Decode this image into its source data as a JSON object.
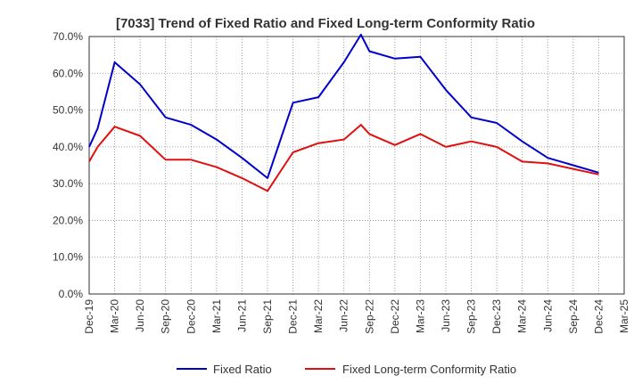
{
  "chart_data": {
    "type": "line",
    "title": "[7033]  Trend of Fixed Ratio and Fixed Long-term Conformity Ratio",
    "xlabel": "",
    "ylabel": "",
    "ylim": [
      0,
      70
    ],
    "y_ticks": [
      "0.0%",
      "10.0%",
      "20.0%",
      "30.0%",
      "40.0%",
      "50.0%",
      "60.0%",
      "70.0%"
    ],
    "x_ticks": [
      "Dec-19",
      "Mar-20",
      "Jun-20",
      "Sep-20",
      "Dec-20",
      "Mar-21",
      "Jun-21",
      "Sep-21",
      "Dec-21",
      "Mar-22",
      "Jun-22",
      "Sep-22",
      "Dec-22",
      "Mar-23",
      "Jun-23",
      "Sep-23",
      "Dec-23",
      "Mar-24",
      "Jun-24",
      "Sep-24",
      "Dec-24",
      "Mar-25"
    ],
    "x": [
      "Dec-19",
      "Jan-20",
      "Mar-20",
      "Jun-20",
      "Sep-20",
      "Dec-20",
      "Mar-21",
      "Jun-21",
      "Sep-21",
      "Dec-21",
      "Mar-22",
      "Jun-22",
      "Aug-22",
      "Sep-22",
      "Dec-22",
      "Mar-23",
      "Jun-23",
      "Sep-23",
      "Dec-23",
      "Mar-24",
      "Jun-24",
      "Sep-24",
      "Dec-24"
    ],
    "grid": true,
    "legend_position": "bottom",
    "series": [
      {
        "name": "Fixed Ratio",
        "color": "#0000cc",
        "values": [
          40.0,
          45.0,
          63.0,
          57.0,
          48.0,
          46.0,
          42.0,
          37.0,
          31.5,
          52.0,
          53.5,
          63.0,
          70.5,
          66.0,
          64.0,
          64.5,
          55.5,
          48.0,
          46.5,
          41.5,
          37.0,
          35.0,
          33.0
        ]
      },
      {
        "name": "Fixed Long-term Conformity Ratio",
        "color": "#e01010",
        "values": [
          36.0,
          40.0,
          45.5,
          43.0,
          36.5,
          36.5,
          34.5,
          31.5,
          28.0,
          38.5,
          41.0,
          42.0,
          46.0,
          43.5,
          40.5,
          43.5,
          40.0,
          41.5,
          40.0,
          36.0,
          35.5,
          34.0,
          32.5
        ]
      }
    ]
  }
}
